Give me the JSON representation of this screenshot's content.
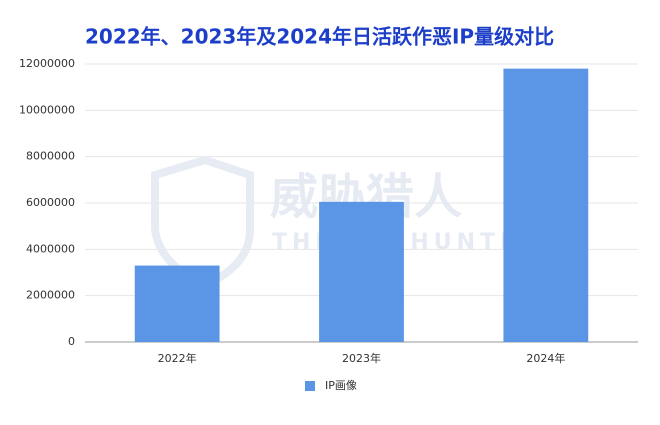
{
  "chart_data": {
    "type": "bar",
    "title": "2022年、2023年及2024年日活跃作恶IP量级对比",
    "categories": [
      "2022年",
      "2023年",
      "2024年"
    ],
    "series": [
      {
        "name": "IP画像",
        "color": "#5b95e5",
        "values": [
          3300000,
          6050000,
          11800000
        ]
      }
    ],
    "ylim": [
      0,
      12000000
    ],
    "yticks": [
      0,
      2000000,
      4000000,
      6000000,
      8000000,
      10000000,
      12000000
    ],
    "grid": true,
    "legend": "bottom",
    "watermark": {
      "title": "威胁猎人",
      "subtitle": "THREAT HUNTER"
    }
  }
}
